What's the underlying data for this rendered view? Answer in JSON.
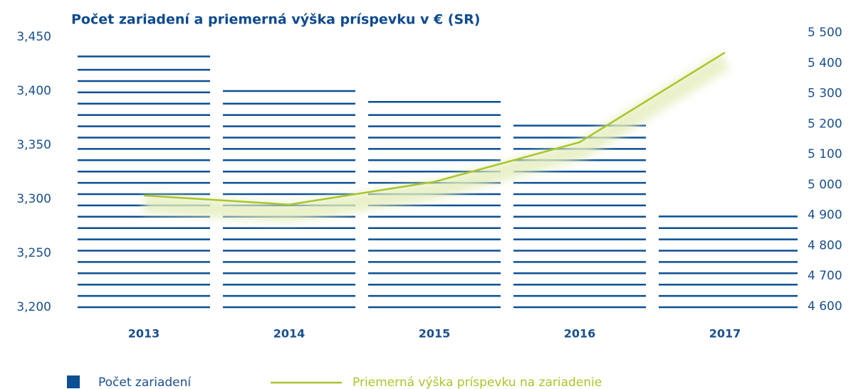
{
  "chart_data": {
    "type": "bar_line",
    "title": "Počet zariadení a priemerná výška príspevku v € (SR)",
    "categories": [
      "2013",
      "2014",
      "2015",
      "2016",
      "2017"
    ],
    "series": [
      {
        "name": "Počet zariadení",
        "color": "#0b4f94",
        "values": [
          3432,
          3400,
          3390,
          3368,
          3284
        ]
      },
      {
        "name": "Priemerná výška príspevku na zariadenie",
        "color": "#a8c62a",
        "axis": "y2",
        "values": [
          4965,
          4935,
          5010,
          5140,
          5435
        ]
      }
    ],
    "ylim": [
      3200,
      3450
    ],
    "yticks": [
      {
        "value": 3200,
        "label": "3,200"
      },
      {
        "value": 3250,
        "label": "3,250"
      },
      {
        "value": 3300,
        "label": "3,300"
      },
      {
        "value": 3350,
        "label": "3,350"
      },
      {
        "value": 3400,
        "label": "3,400"
      },
      {
        "value": 3450,
        "label": "3,450"
      }
    ],
    "y2lim": [
      4600,
      5500
    ],
    "y2ticks": [
      {
        "value": 4600,
        "label": "4 600"
      },
      {
        "value": 4700,
        "label": "4 700"
      },
      {
        "value": 4800,
        "label": "4 800"
      },
      {
        "value": 4900,
        "label": "4 900"
      },
      {
        "value": 5000,
        "label": "5 000"
      },
      {
        "value": 5100,
        "label": "5 100"
      },
      {
        "value": 5200,
        "label": "5 200"
      },
      {
        "value": 5300,
        "label": "5 300"
      },
      {
        "value": 5400,
        "label": "5 400"
      },
      {
        "value": 5500,
        "label": "5 500"
      }
    ]
  }
}
